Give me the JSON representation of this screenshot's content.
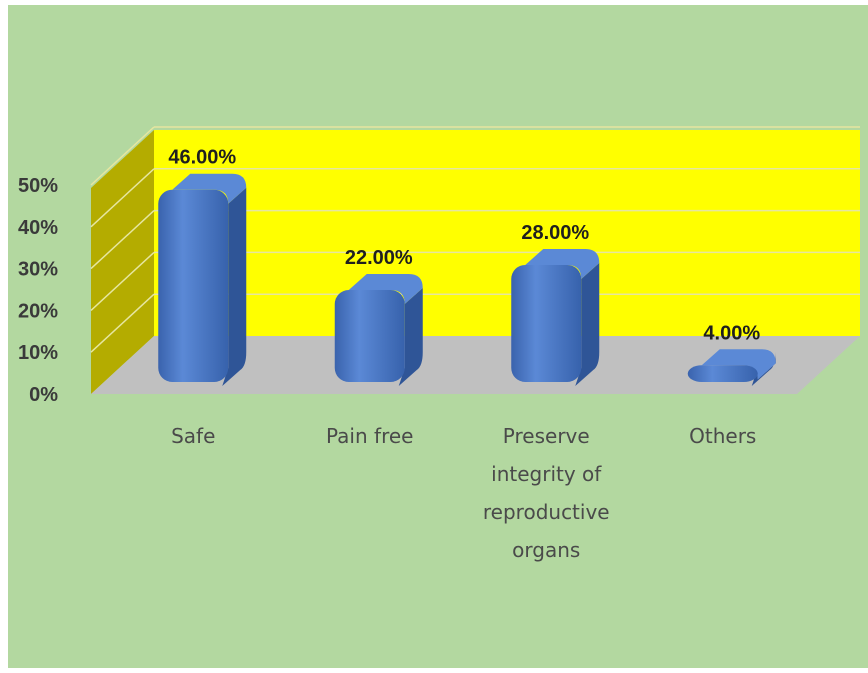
{
  "chart_data": {
    "type": "bar",
    "title": "",
    "xlabel": "",
    "ylabel": "",
    "categories": [
      [
        "Safe"
      ],
      [
        "Pain free"
      ],
      [
        "Preserve",
        "integrity of",
        "reproductive",
        "organs"
      ],
      [
        "Others"
      ]
    ],
    "values": [
      46,
      22,
      28,
      4
    ],
    "data_labels": [
      "46.00%",
      "22.00%",
      "28.00%",
      "4.00%"
    ],
    "y_ticks": [
      0,
      10,
      20,
      30,
      40,
      50
    ],
    "y_tick_labels": [
      "0%",
      "10%",
      "20%",
      "30%",
      "40%",
      "50%"
    ],
    "ylim": [
      0,
      50
    ],
    "grid": true,
    "style": "3d",
    "colors": {
      "background": "#b3d8a0",
      "back_wall": "#ffff00",
      "side_wall": "#b4ac00",
      "floor": "#c0c0c0",
      "bar": "#4472c4",
      "bar_dark": "#2f5597",
      "bar_top": "#5b89d6",
      "gridline": "#e6e6a0"
    }
  }
}
